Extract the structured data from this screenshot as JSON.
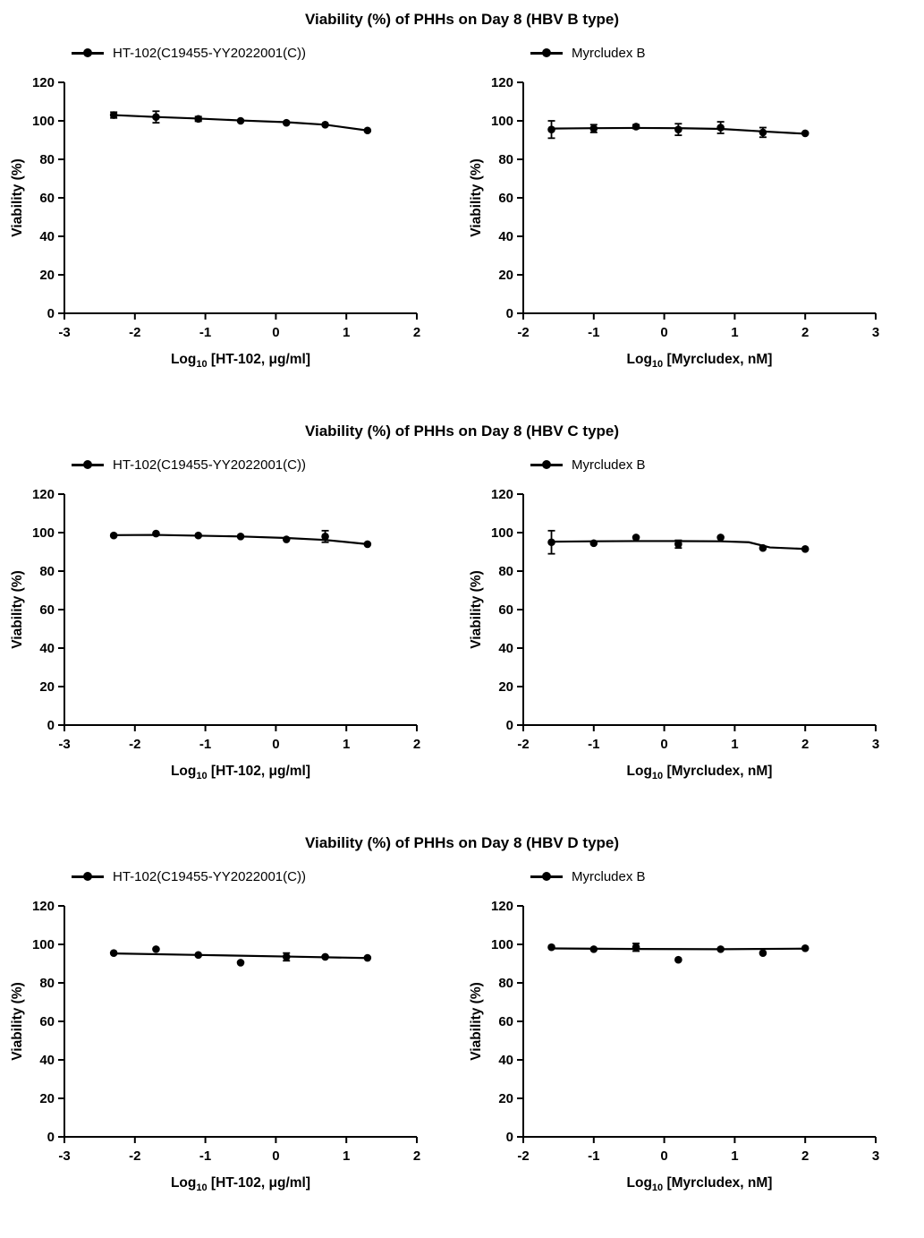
{
  "chart_data": [
    {
      "title": "Viability (%) of PHHs on Day 8 (HBV B type)",
      "panels": [
        {
          "type": "scatter",
          "legend": "HT-102(C19455-YY2022001(C))",
          "xlabel": {
            "pre": "Log",
            "sub": "10",
            "post": " [HT-102, μg/ml]"
          },
          "ylabel": "Viability (%)",
          "xlim": [
            -3,
            2
          ],
          "ylim": [
            0,
            120
          ],
          "xticks": [
            -3,
            -2,
            -1,
            0,
            1,
            2
          ],
          "yticks": [
            0,
            20,
            40,
            60,
            80,
            100,
            120
          ],
          "x": [
            -2.3,
            -1.7,
            -1.1,
            -0.5,
            0.15,
            0.7,
            1.3
          ],
          "y": [
            103,
            102,
            101,
            100,
            99,
            98,
            95
          ],
          "yerr": [
            1.5,
            3,
            1.2,
            0.8,
            0.8,
            0.8,
            0.8
          ],
          "trend": {
            "x": [
              -2.3,
              -1.7,
              -1.1,
              -0.5,
              0.15,
              0.7,
              1.3
            ],
            "y": [
              103,
              102,
              101.2,
              100.2,
              99.3,
              98,
              95
            ]
          }
        },
        {
          "type": "scatter",
          "legend": "Myrcludex B",
          "xlabel": {
            "pre": "Log",
            "sub": "10",
            "post": " [Myrcludex, nM]"
          },
          "ylabel": "Viability (%)",
          "xlim": [
            -2,
            3
          ],
          "ylim": [
            0,
            120
          ],
          "xticks": [
            -2,
            -1,
            0,
            1,
            2,
            3
          ],
          "yticks": [
            0,
            20,
            40,
            60,
            80,
            100,
            120
          ],
          "x": [
            -1.6,
            -1.0,
            -0.4,
            0.2,
            0.8,
            1.4,
            2.0
          ],
          "y": [
            95.5,
            96,
            97,
            95.5,
            96.5,
            94,
            93.5
          ],
          "yerr": [
            4.5,
            2,
            1,
            3,
            3,
            2.5,
            0.8
          ],
          "trend": {
            "x": [
              -1.6,
              -1.0,
              -0.4,
              0.2,
              0.8,
              1.4,
              2.0
            ],
            "y": [
              96,
              96.2,
              96.3,
              96.2,
              95.8,
              94.5,
              93.3
            ]
          }
        }
      ]
    },
    {
      "title": "Viability (%) of PHHs on Day 8 (HBV C type)",
      "panels": [
        {
          "type": "scatter",
          "legend": "HT-102(C19455-YY2022001(C))",
          "xlabel": {
            "pre": "Log",
            "sub": "10",
            "post": " [HT-102, μg/ml]"
          },
          "ylabel": "Viability (%)",
          "xlim": [
            -3,
            2
          ],
          "ylim": [
            0,
            120
          ],
          "xticks": [
            -3,
            -2,
            -1,
            0,
            1,
            2
          ],
          "yticks": [
            0,
            20,
            40,
            60,
            80,
            100,
            120
          ],
          "x": [
            -2.3,
            -1.7,
            -1.1,
            -0.5,
            0.15,
            0.7,
            1.3
          ],
          "y": [
            98.5,
            99.5,
            98.5,
            98,
            96.5,
            98,
            94
          ],
          "yerr": [
            0.8,
            0.8,
            0.8,
            0.8,
            0.8,
            3,
            0.8
          ],
          "trend": {
            "x": [
              -2.3,
              -1.7,
              -1.1,
              -0.5,
              0.15,
              0.7,
              1.3
            ],
            "y": [
              98.7,
              98.8,
              98.4,
              98,
              97.2,
              96.2,
              94
            ]
          }
        },
        {
          "type": "scatter",
          "legend": "Myrcludex B",
          "xlabel": {
            "pre": "Log",
            "sub": "10",
            "post": " [Myrcludex, nM]"
          },
          "ylabel": "Viability (%)",
          "xlim": [
            -2,
            3
          ],
          "ylim": [
            0,
            120
          ],
          "xticks": [
            -2,
            -1,
            0,
            1,
            2,
            3
          ],
          "yticks": [
            0,
            20,
            40,
            60,
            80,
            100,
            120
          ],
          "x": [
            -1.6,
            -1.0,
            -0.4,
            0.2,
            0.8,
            1.4,
            2.0
          ],
          "y": [
            95,
            94.5,
            97.5,
            94,
            97.5,
            92,
            91.5
          ],
          "yerr": [
            6,
            0.8,
            0.8,
            2,
            0.8,
            0.8,
            0.8
          ],
          "trend": {
            "x": [
              -1.6,
              -1.0,
              -0.4,
              0.2,
              0.8,
              1.2,
              1.5,
              2.0
            ],
            "y": [
              95.3,
              95.5,
              95.6,
              95.6,
              95.5,
              95,
              92.3,
              91.5
            ]
          }
        }
      ]
    },
    {
      "title": "Viability (%) of PHHs on Day 8 (HBV D type)",
      "panels": [
        {
          "type": "scatter",
          "legend": "HT-102(C19455-YY2022001(C))",
          "xlabel": {
            "pre": "Log",
            "sub": "10",
            "post": " [HT-102, μg/ml]"
          },
          "ylabel": "Viability (%)",
          "xlim": [
            -3,
            2
          ],
          "ylim": [
            0,
            120
          ],
          "xticks": [
            -3,
            -2,
            -1,
            0,
            1,
            2
          ],
          "yticks": [
            0,
            20,
            40,
            60,
            80,
            100,
            120
          ],
          "x": [
            -2.3,
            -1.7,
            -1.1,
            -0.5,
            0.15,
            0.7,
            1.3
          ],
          "y": [
            95.5,
            97.5,
            94.5,
            90.5,
            93.5,
            93.5,
            93
          ],
          "yerr": [
            0.8,
            0.8,
            0.8,
            0.8,
            2,
            0.8,
            0.8
          ],
          "trend": {
            "x": [
              -2.3,
              -1.1,
              0.15,
              1.3
            ],
            "y": [
              95.3,
              94.5,
              93.7,
              92.9
            ]
          }
        },
        {
          "type": "scatter",
          "legend": "Myrcludex B",
          "xlabel": {
            "pre": "Log",
            "sub": "10",
            "post": " [Myrcludex, nM]"
          },
          "ylabel": "Viability (%)",
          "xlim": [
            -2,
            3
          ],
          "ylim": [
            0,
            120
          ],
          "xticks": [
            -2,
            -1,
            0,
            1,
            2,
            3
          ],
          "yticks": [
            0,
            20,
            40,
            60,
            80,
            100,
            120
          ],
          "x": [
            -1.6,
            -1.0,
            -0.4,
            0.2,
            0.8,
            1.4,
            2.0
          ],
          "y": [
            98.5,
            97.5,
            98.5,
            92,
            97.5,
            95.5,
            98
          ],
          "yerr": [
            0.8,
            0.8,
            2,
            0.8,
            0.8,
            0.8,
            0.8
          ],
          "trend": {
            "x": [
              -1.6,
              -0.4,
              0.8,
              2.0
            ],
            "y": [
              97.9,
              97.6,
              97.5,
              97.8
            ]
          }
        }
      ]
    }
  ]
}
